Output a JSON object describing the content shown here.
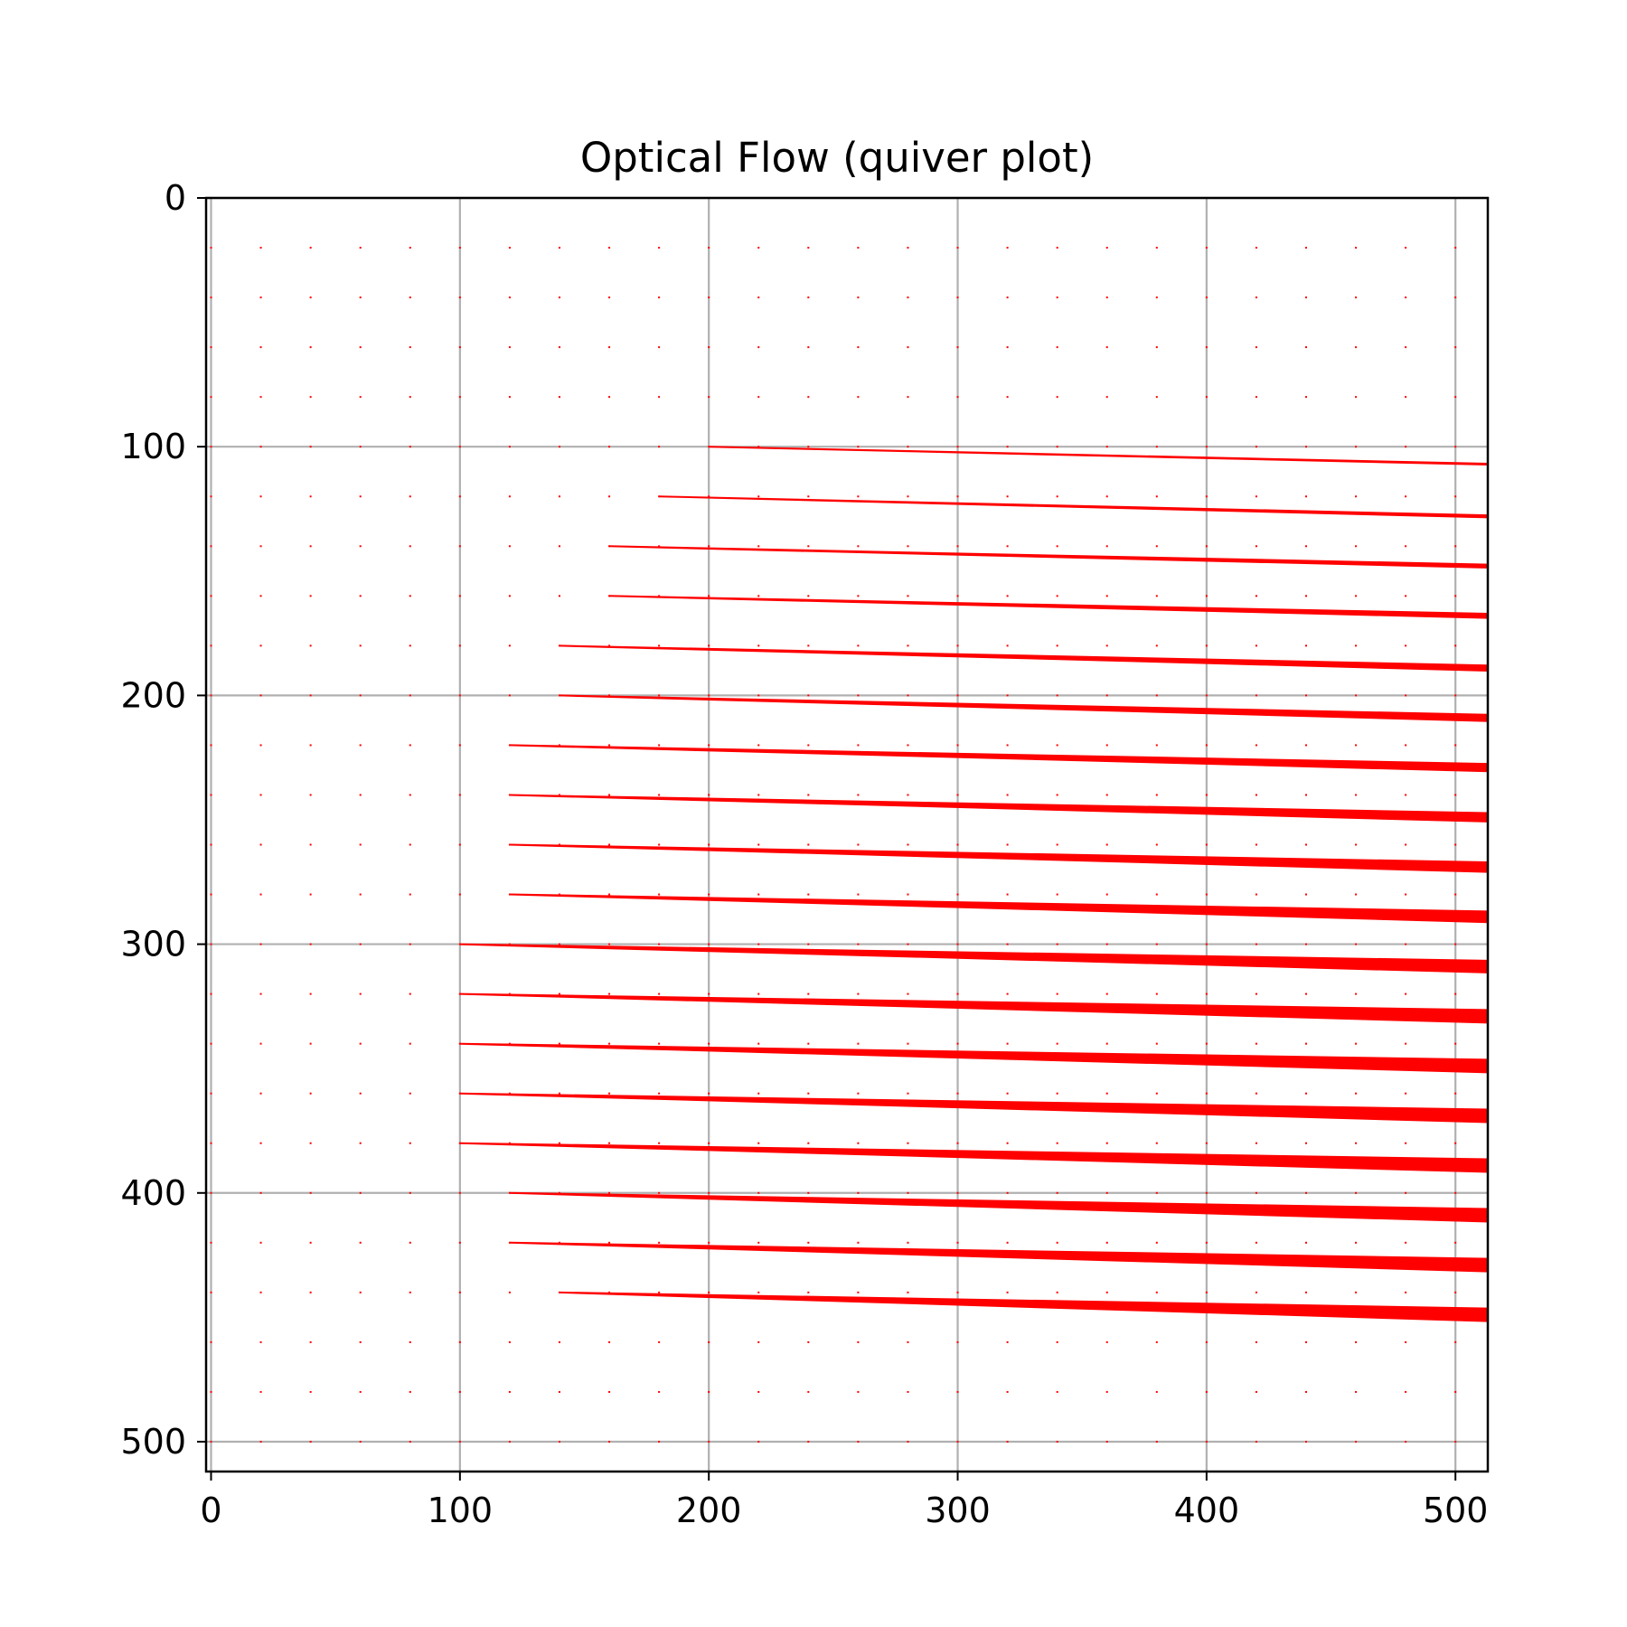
{
  "chart_data": {
    "type": "quiver",
    "title": "Optical Flow (quiver plot)",
    "xlabel": "",
    "ylabel": "",
    "xlim": [
      -2,
      513
    ],
    "ylim": [
      512,
      0
    ],
    "y_inverted": true,
    "grid": true,
    "grid_color": "#b0b0b0",
    "arrow_color": "#ff0000",
    "x_ticks": [
      0,
      100,
      200,
      300,
      400,
      500
    ],
    "y_ticks": [
      0,
      100,
      200,
      300,
      400,
      500
    ],
    "x_tick_labels": [
      "0",
      "100",
      "200",
      "300",
      "400",
      "500"
    ],
    "y_tick_labels": [
      "0",
      "100",
      "200",
      "300",
      "400",
      "500"
    ],
    "grid_points": {
      "x": [
        0,
        20,
        40,
        60,
        80,
        100,
        120,
        140,
        160,
        180,
        200,
        220,
        240,
        260,
        280,
        300,
        320,
        340,
        360,
        380,
        400,
        420,
        440,
        460,
        480,
        500
      ],
      "y": [
        0,
        20,
        40,
        60,
        80,
        100,
        120,
        140,
        160,
        180,
        200,
        220,
        240,
        260,
        280,
        300,
        320,
        340,
        360,
        380,
        400,
        420,
        440,
        460,
        480,
        500
      ]
    },
    "flow_rows": [
      {
        "y": 100,
        "x_start": 200,
        "y_end": 107
      },
      {
        "y": 120,
        "x_start": 180,
        "y_end": 128
      },
      {
        "y": 140,
        "x_start": 160,
        "y_end": 148
      },
      {
        "y": 160,
        "x_start": 160,
        "y_end": 168
      },
      {
        "y": 180,
        "x_start": 140,
        "y_end": 189
      },
      {
        "y": 200,
        "x_start": 140,
        "y_end": 209
      },
      {
        "y": 220,
        "x_start": 120,
        "y_end": 229
      },
      {
        "y": 240,
        "x_start": 120,
        "y_end": 249
      },
      {
        "y": 260,
        "x_start": 120,
        "y_end": 269
      },
      {
        "y": 280,
        "x_start": 120,
        "y_end": 289
      },
      {
        "y": 300,
        "x_start": 100,
        "y_end": 309
      },
      {
        "y": 320,
        "x_start": 100,
        "y_end": 329
      },
      {
        "y": 340,
        "x_start": 100,
        "y_end": 349
      },
      {
        "y": 360,
        "x_start": 100,
        "y_end": 369
      },
      {
        "y": 380,
        "x_start": 100,
        "y_end": 389
      },
      {
        "y": 400,
        "x_start": 120,
        "y_end": 409
      },
      {
        "y": 420,
        "x_start": 120,
        "y_end": 429
      },
      {
        "y": 440,
        "x_start": 140,
        "y_end": 449
      }
    ]
  }
}
